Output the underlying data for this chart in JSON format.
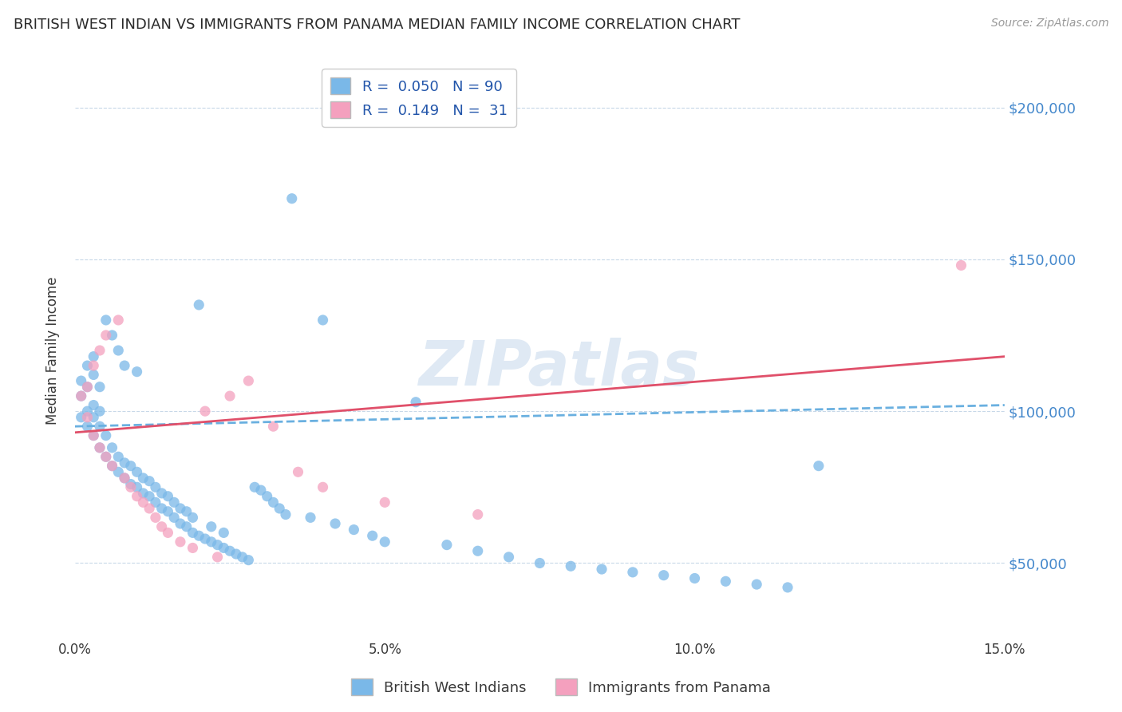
{
  "title": "BRITISH WEST INDIAN VS IMMIGRANTS FROM PANAMA MEDIAN FAMILY INCOME CORRELATION CHART",
  "source": "Source: ZipAtlas.com",
  "ylabel": "Median Family Income",
  "x_min": 0.0,
  "x_max": 0.15,
  "y_min": 25000,
  "y_max": 215000,
  "y_ticks": [
    50000,
    100000,
    150000,
    200000
  ],
  "y_tick_labels": [
    "$50,000",
    "$100,000",
    "$150,000",
    "$200,000"
  ],
  "x_ticks": [
    0.0,
    0.05,
    0.1,
    0.15
  ],
  "x_tick_labels": [
    "0.0%",
    "5.0%",
    "10.0%",
    "15.0%"
  ],
  "series1_color": "#7ab8e8",
  "series2_color": "#f4a0be",
  "trendline1_color": "#6ab0e0",
  "trendline2_color": "#e0506a",
  "watermark": "ZIPatlas",
  "bwi_x": [
    0.001,
    0.001,
    0.001,
    0.002,
    0.002,
    0.002,
    0.002,
    0.003,
    0.003,
    0.003,
    0.003,
    0.003,
    0.004,
    0.004,
    0.004,
    0.004,
    0.005,
    0.005,
    0.005,
    0.006,
    0.006,
    0.006,
    0.007,
    0.007,
    0.007,
    0.008,
    0.008,
    0.008,
    0.009,
    0.009,
    0.01,
    0.01,
    0.01,
    0.011,
    0.011,
    0.012,
    0.012,
    0.013,
    0.013,
    0.014,
    0.014,
    0.015,
    0.015,
    0.016,
    0.016,
    0.017,
    0.017,
    0.018,
    0.018,
    0.019,
    0.019,
    0.02,
    0.02,
    0.021,
    0.022,
    0.022,
    0.023,
    0.024,
    0.024,
    0.025,
    0.026,
    0.027,
    0.028,
    0.029,
    0.03,
    0.031,
    0.032,
    0.033,
    0.034,
    0.035,
    0.038,
    0.04,
    0.042,
    0.045,
    0.048,
    0.05,
    0.055,
    0.06,
    0.065,
    0.07,
    0.075,
    0.08,
    0.085,
    0.09,
    0.095,
    0.1,
    0.105,
    0.11,
    0.115,
    0.12
  ],
  "bwi_y": [
    98000,
    105000,
    110000,
    95000,
    100000,
    108000,
    115000,
    92000,
    98000,
    102000,
    112000,
    118000,
    88000,
    95000,
    100000,
    108000,
    85000,
    92000,
    130000,
    82000,
    88000,
    125000,
    80000,
    85000,
    120000,
    78000,
    83000,
    115000,
    76000,
    82000,
    75000,
    80000,
    113000,
    73000,
    78000,
    72000,
    77000,
    70000,
    75000,
    68000,
    73000,
    67000,
    72000,
    65000,
    70000,
    63000,
    68000,
    62000,
    67000,
    60000,
    65000,
    59000,
    135000,
    58000,
    57000,
    62000,
    56000,
    55000,
    60000,
    54000,
    53000,
    52000,
    51000,
    75000,
    74000,
    72000,
    70000,
    68000,
    66000,
    170000,
    65000,
    130000,
    63000,
    61000,
    59000,
    57000,
    103000,
    56000,
    54000,
    52000,
    50000,
    49000,
    48000,
    47000,
    46000,
    45000,
    44000,
    43000,
    42000,
    82000
  ],
  "pan_x": [
    0.001,
    0.002,
    0.002,
    0.003,
    0.003,
    0.004,
    0.004,
    0.005,
    0.005,
    0.006,
    0.007,
    0.008,
    0.009,
    0.01,
    0.011,
    0.012,
    0.013,
    0.014,
    0.015,
    0.017,
    0.019,
    0.021,
    0.023,
    0.025,
    0.028,
    0.032,
    0.036,
    0.04,
    0.05,
    0.065,
    0.143
  ],
  "pan_y": [
    105000,
    98000,
    108000,
    92000,
    115000,
    88000,
    120000,
    85000,
    125000,
    82000,
    130000,
    78000,
    75000,
    72000,
    70000,
    68000,
    65000,
    62000,
    60000,
    57000,
    55000,
    100000,
    52000,
    105000,
    110000,
    95000,
    80000,
    75000,
    70000,
    66000,
    148000
  ]
}
